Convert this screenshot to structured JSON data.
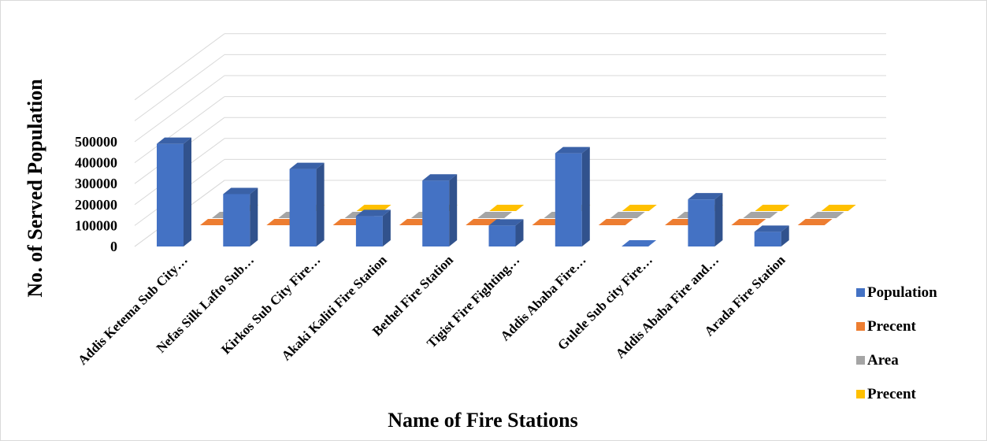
{
  "chart_data": {
    "type": "bar",
    "variant": "3d-column",
    "title": "",
    "xlabel": "Name of Fire Stations",
    "ylabel": "No. of Served Population",
    "ylim": [
      0,
      500000
    ],
    "y_ticks": [
      "500000",
      "400000",
      "300000",
      "200000",
      "100000",
      "0"
    ],
    "grid": true,
    "legend_position": "right",
    "categories": [
      "Addis Ketema Sub City…",
      "Nefas Silk Lafto Sub…",
      "Kirkos Sub City Fire…",
      "Akaki Kaliti Fire Station",
      "Bethel Fire Station",
      "Tigist Fire Fighting…",
      "Addis Ababa Fire…",
      "Gulele Sub city Fire…",
      "Addis Ababa Fire and…",
      "Arada Fire Station"
    ],
    "series": [
      {
        "name": "Population",
        "color": "#4472c4",
        "values": [
          490000,
          250000,
          370000,
          145000,
          315000,
          100000,
          445000,
          0,
          225000,
          70000
        ]
      },
      {
        "name": "Precent",
        "color": "#ed7d31",
        "values": [
          0,
          0,
          0,
          0,
          0,
          0,
          0,
          0,
          0,
          0
        ]
      },
      {
        "name": "Area",
        "color": "#a5a5a5",
        "values": [
          0,
          0,
          0,
          0,
          0,
          0,
          0,
          0,
          0,
          0
        ]
      },
      {
        "name": "Precent",
        "color": "#ffc000",
        "values": [
          0,
          0,
          0,
          0,
          0,
          0,
          0,
          0,
          0,
          0
        ]
      }
    ]
  }
}
